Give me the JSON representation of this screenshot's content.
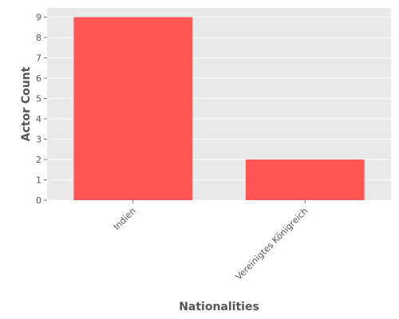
{
  "chart_data": {
    "type": "bar",
    "categories": [
      "Indien",
      "Vereinigtes Königreich"
    ],
    "values": [
      9,
      2
    ],
    "xlabel": "Nationalities",
    "ylabel": "Actor Count",
    "ylim": [
      0,
      9.45
    ],
    "yticks": [
      0,
      1,
      2,
      3,
      4,
      5,
      6,
      7,
      8,
      9
    ],
    "grid": true,
    "colors": {
      "bar": "#ff5555",
      "plot_background": "#e9e9e9",
      "grid": "#ffffff",
      "text": "#555555"
    }
  }
}
